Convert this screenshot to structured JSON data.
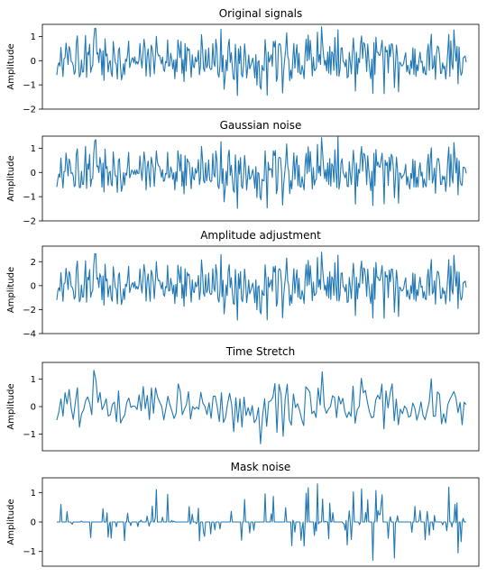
{
  "figure": {
    "line_color": "#1f77b4",
    "axes_color": "#000000",
    "background": "#ffffff"
  },
  "chart_data": [
    {
      "type": "line",
      "title": "Original signals",
      "xlabel": "",
      "ylabel": "Amplitude",
      "ylim": [
        -2,
        1.5
      ],
      "yticks": [
        1,
        0,
        -1,
        -2
      ],
      "xticks_visible": false,
      "grid": false,
      "sample_count": 400,
      "amplitude_range": [
        -1.9,
        1.4
      ],
      "series": [
        {
          "color": "#1f77b4",
          "style": "dense random signal"
        }
      ]
    },
    {
      "type": "line",
      "title": "Gaussian noise",
      "xlabel": "",
      "ylabel": "Amplitude",
      "ylim": [
        -2,
        1.5
      ],
      "yticks": [
        1,
        0,
        -1,
        -2
      ],
      "xticks_visible": false,
      "grid": false,
      "sample_count": 400,
      "amplitude_range": [
        -1.8,
        1.5
      ],
      "series": [
        {
          "color": "#1f77b4",
          "style": "dense random signal"
        }
      ]
    },
    {
      "type": "line",
      "title": "Amplitude adjustment",
      "xlabel": "",
      "ylabel": "Amplitude",
      "ylim": [
        -4,
        3.3
      ],
      "yticks": [
        2,
        0,
        -2,
        -4
      ],
      "xticks_visible": false,
      "grid": false,
      "sample_count": 400,
      "amplitude_range": [
        -3.8,
        3.0
      ],
      "series": [
        {
          "color": "#1f77b4",
          "style": "dense random signal"
        }
      ]
    },
    {
      "type": "line",
      "title": "Time Stretch",
      "xlabel": "",
      "ylabel": "Amplitude",
      "ylim": [
        -1.6,
        1.6
      ],
      "yticks": [
        1,
        0,
        -1
      ],
      "xticks_visible": false,
      "grid": false,
      "sample_count": 200,
      "amplitude_range": [
        -1.5,
        1.4
      ],
      "series": [
        {
          "color": "#1f77b4",
          "style": "smoothed stretched signal"
        }
      ]
    },
    {
      "type": "line",
      "title": "Mask noise",
      "xlabel": "",
      "ylabel": "Amplitude",
      "ylim": [
        -1.5,
        1.5
      ],
      "yticks": [
        1,
        0,
        -1
      ],
      "xticks_visible": false,
      "grid": false,
      "sample_count": 400,
      "amplitude_range": [
        -1.3,
        1.4
      ],
      "series": [
        {
          "color": "#1f77b4",
          "style": "sparse masked spikes around zero"
        }
      ]
    }
  ]
}
